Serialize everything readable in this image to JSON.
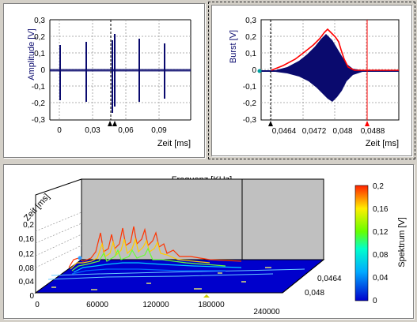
{
  "colors": {
    "background": "#d4d0c8",
    "signal": "#0a0a6e",
    "envelope": "#ff0000",
    "marker": "#000000",
    "floor": "#0000cc"
  },
  "panel1": {
    "ylabel": "Amplitude [V]",
    "xlabel": "Zeit [ms]",
    "yticks": [
      "0,3",
      "0,2",
      "0,1",
      "0",
      "-0,1",
      "-0,2",
      "-0,3"
    ],
    "xticks": [
      "0",
      "0,03",
      "0,06",
      "0,09"
    ]
  },
  "panel2": {
    "ylabel": "Burst [V]",
    "xlabel": "Zeit [ms]",
    "yticks": [
      "0,3",
      "0,2",
      "0,1",
      "0",
      "-0,1",
      "-0,2",
      "-0,3"
    ],
    "xticks": [
      "0,0464",
      "0,0472",
      "0,048",
      "0,0488"
    ]
  },
  "panel3": {
    "title": "Frequenz [KHz]",
    "zlabel": "Zeit [ms]",
    "yticks": [
      "0,2",
      "0,16",
      "0,12",
      "0,08",
      "0,04",
      "0"
    ],
    "xticks": [
      "0",
      "60000",
      "120000",
      "180000",
      "240000"
    ],
    "depth_ticks": [
      "0,0464",
      "0,048"
    ],
    "colorbar_label": "Spektrum [V]",
    "colorbar_ticks": [
      "0,2",
      "0,16",
      "0,12",
      "0,08",
      "0,04",
      "0"
    ]
  }
}
